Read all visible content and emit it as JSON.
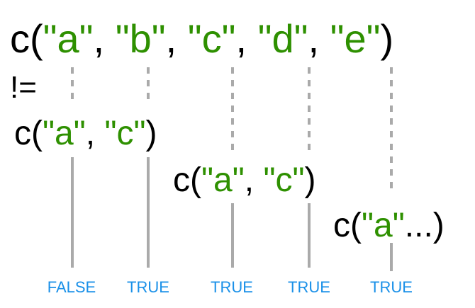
{
  "colors": {
    "code_text": "#000000",
    "string_text": "#2e9000",
    "result_text": "#1a90e8",
    "connector_line": "#aaaaaa"
  },
  "top_vector": [
    "c(",
    "\"a\"",
    ", ",
    "\"b\"",
    ", ",
    "\"c\"",
    ", ",
    "\"d\"",
    ", ",
    "\"e\"",
    ")"
  ],
  "operator": "!=",
  "recycled_vectors": [
    [
      "c(",
      "\"a\"",
      ", ",
      "\"c\"",
      ")"
    ],
    [
      "c(",
      "\"a\"",
      ", ",
      "\"c\"",
      ")"
    ],
    [
      "c(",
      "\"a\"",
      "...)"
    ]
  ],
  "results": [
    "FALSE",
    "TRUE",
    "TRUE",
    "TRUE",
    "TRUE"
  ]
}
